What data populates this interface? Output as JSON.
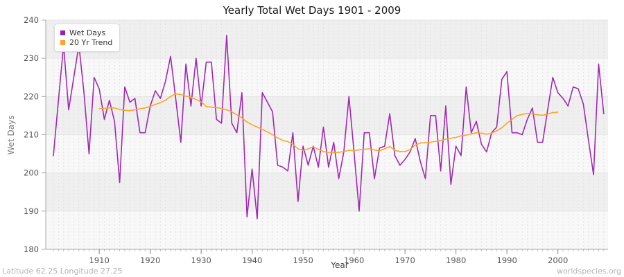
{
  "footer": {
    "left": "Latitude 62.25 Longitude 27.25",
    "right": "worldspecies.org"
  },
  "legend": {
    "items": [
      {
        "label": "Wet Days",
        "color": "#9c1fb5"
      },
      {
        "label": "20 Yr Trend",
        "color": "#ffa426"
      }
    ]
  },
  "chart_data": {
    "type": "line",
    "title": "Yearly Total Wet Days 1901 - 2009",
    "xlabel": "Year",
    "ylabel": "Wet Days",
    "ylim": [
      180,
      240
    ],
    "y_ticks": [
      180,
      190,
      200,
      210,
      220,
      230,
      240
    ],
    "x_ticks": [
      1910,
      1920,
      1930,
      1940,
      1950,
      1960,
      1970,
      1980,
      1990,
      2000
    ],
    "x_range": [
      1901,
      2009
    ],
    "grid": {
      "horizontal": "solid",
      "vertical": "dashed-yearly"
    },
    "legend_position": "top-left",
    "band_colors": [
      "#f8f8f8",
      "#efefef"
    ],
    "series": [
      {
        "name": "Wet Days",
        "color": "#a128b5",
        "x_start": 1901,
        "values": [
          204.5,
          219,
          233.5,
          216.5,
          225,
          233.5,
          221,
          205,
          225,
          222,
          214,
          219,
          213.5,
          197.5,
          222.5,
          218.5,
          219.5,
          210.5,
          210.5,
          217.5,
          221.5,
          219.5,
          224,
          230.5,
          219.5,
          208,
          228.5,
          217.5,
          230,
          217.5,
          229,
          229,
          214,
          213,
          236,
          213,
          210.5,
          221,
          188.5,
          201,
          188,
          221,
          218.5,
          216,
          202,
          201.5,
          200.5,
          210.5,
          192.5,
          207,
          202,
          207,
          201.5,
          212,
          201.5,
          208,
          198.5,
          205.5,
          220,
          205.5,
          190,
          210.5,
          210.5,
          198.5,
          206.5,
          207,
          215.5,
          204.5,
          202,
          203.5,
          205.5,
          209,
          203,
          198.5,
          215,
          215,
          200.5,
          217.5,
          197,
          207,
          204.5,
          222.5,
          210.5,
          213.5,
          207.5,
          205.5,
          210.5,
          212,
          224.5,
          226.5,
          210.5,
          210.5,
          210,
          214,
          217,
          208,
          208,
          216.5,
          225,
          221,
          219.5,
          217.5,
          222.5,
          222,
          218,
          208.5,
          199.5,
          228.5,
          215.5
        ]
      },
      {
        "name": "20 Yr Trend",
        "color": "#ffa426",
        "x_start": 1910,
        "values": [
          216.8,
          216.9,
          217.0,
          217.0,
          216.6,
          216.4,
          216.3,
          216.5,
          216.8,
          217.0,
          217.4,
          217.9,
          218.4,
          219.0,
          220.0,
          220.7,
          220.5,
          220.1,
          219.9,
          219.2,
          218.6,
          217.4,
          217.2,
          217.1,
          216.9,
          216.5,
          216.0,
          215.2,
          214.4,
          213.3,
          212.6,
          212.0,
          211.4,
          210.7,
          210.0,
          209.2,
          208.5,
          208.2,
          207.5,
          206.3,
          205.9,
          206.3,
          206.8,
          206.2,
          205.6,
          205.3,
          205.3,
          205.4,
          205.6,
          205.9,
          205.9,
          206.0,
          206.2,
          206.3,
          206.0,
          205.8,
          206.3,
          206.9,
          205.9,
          205.6,
          205.6,
          206.1,
          207.3,
          207.8,
          207.9,
          208.0,
          208.3,
          208.5,
          208.8,
          209.1,
          209.3,
          209.7,
          209.9,
          210.2,
          210.5,
          210.4,
          210.1,
          210.4,
          211.0,
          211.8,
          213.0,
          214.0,
          215.0,
          215.3,
          215.6,
          215.5,
          215.2,
          215.1,
          215.4,
          215.8,
          215.9
        ]
      }
    ]
  }
}
